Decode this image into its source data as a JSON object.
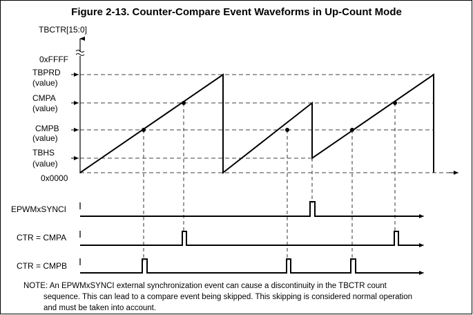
{
  "figure": {
    "title": "Figure 2-13. Counter-Compare Event Waveforms in Up-Count Mode",
    "axis_label": "TBCTR[15:0]",
    "y_labels": {
      "max": "0xFFFF",
      "tbprd": [
        "TBPRD",
        "(value)"
      ],
      "cmpa": [
        "CMPA",
        "(value)"
      ],
      "cmpb": [
        "CMPB",
        "(value)"
      ],
      "tbhs": [
        "TBHS",
        "(value)"
      ],
      "zero": "0x0000"
    },
    "signals": {
      "sync": "EPWMxSYNCI",
      "ctr_cmpa": "CTR = CMPA",
      "ctr_cmpb": "CTR = CMPB"
    },
    "note": {
      "lines": [
        "NOTE:  An EPWMxSYNCI external synchronization event can cause a discontinuity in the TBCTR count",
        "sequence. This can lead to a compare event being skipped. This skipping is considered normal operation",
        "and must be taken into account."
      ]
    }
  }
}
